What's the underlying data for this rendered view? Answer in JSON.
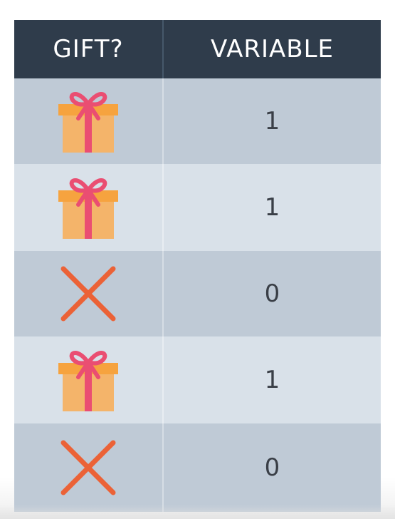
{
  "table": {
    "headers": [
      "GIFT?",
      "VARIABLE"
    ],
    "rows": [
      {
        "icon": "gift-icon",
        "value": "1"
      },
      {
        "icon": "gift-icon",
        "value": "1"
      },
      {
        "icon": "x-icon",
        "value": "0"
      },
      {
        "icon": "gift-icon",
        "value": "1"
      },
      {
        "icon": "x-icon",
        "value": "0"
      }
    ]
  },
  "colors": {
    "header_bg": "#2f3c4b",
    "row_dark": "#bfcad6",
    "row_light": "#d9e1e9",
    "gift_box": "#f4b46a",
    "gift_lid": "#f6a33f",
    "ribbon": "#ea4e72",
    "x_mark": "#eb6237"
  }
}
